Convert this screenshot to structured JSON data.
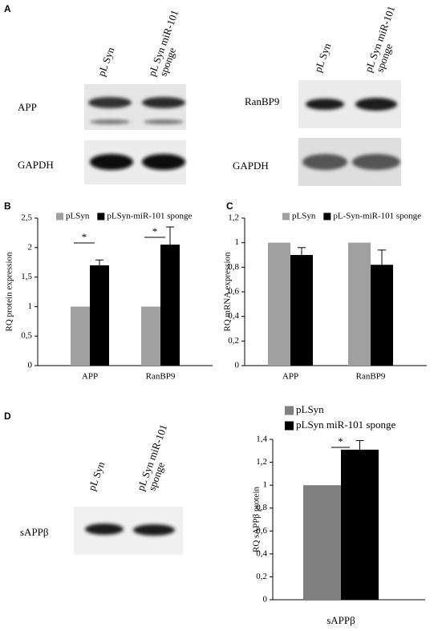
{
  "panel_labels": [
    "A",
    "B",
    "C",
    "D"
  ],
  "blots": [
    {
      "lanes": [
        [
          "pL Syn"
        ],
        [
          "pL Syn miR-101",
          "sponge"
        ]
      ],
      "rows": [
        "APP",
        "GAPDH"
      ]
    },
    {
      "lanes": [
        [
          "pL Syn"
        ],
        [
          "pL Syn miR-101",
          "sponge"
        ]
      ],
      "rows": [
        "RanBP9",
        "GAPDH"
      ]
    },
    {
      "lanes": [
        [
          "pL Syn"
        ],
        [
          "pL Syn miR-101",
          "sponge"
        ]
      ],
      "rows": [
        "sAPPβ"
      ]
    }
  ],
  "chart_data": [
    {
      "type": "bar",
      "ylabel": "RQ protein expression",
      "categories": [
        "APP",
        "RanBP9"
      ],
      "series": [
        {
          "name": "pLSyn",
          "color": "#a0a0a0",
          "values": [
            1,
            1
          ]
        },
        {
          "name": "pLSyn-miR-101 sponge",
          "color": "#000000",
          "values": [
            1.7,
            2.05
          ],
          "errors": [
            0.09,
            0.3
          ]
        }
      ],
      "ylim": [
        0,
        2.5
      ],
      "yticks": [
        0,
        {
          "value": 0.5,
          "label": "0,5"
        },
        1,
        {
          "value": 1.5,
          "label": "1,5"
        },
        2,
        {
          "value": 2.5,
          "label": "2,5"
        }
      ],
      "annotations": [
        "*",
        "*"
      ],
      "legend": "top"
    },
    {
      "type": "bar",
      "ylabel": "RQ mRNA expression",
      "categories": [
        "APP",
        "RanBP9"
      ],
      "series": [
        {
          "name": "pLSyn",
          "color": "#a0a0a0",
          "values": [
            1,
            1
          ]
        },
        {
          "name": "pL-Syn-miR-101 sponge",
          "color": "#000000",
          "values": [
            0.9,
            0.82
          ],
          "errors": [
            0.06,
            0.12
          ]
        }
      ],
      "ylim": [
        0,
        1.2
      ],
      "yticks": [
        0,
        {
          "value": 0.2,
          "label": "0,2"
        },
        {
          "value": 0.4,
          "label": "0,4"
        },
        {
          "value": 0.6,
          "label": "0,6"
        },
        {
          "value": 0.8,
          "label": "0,8"
        },
        1,
        {
          "value": 1.2,
          "label": "1,2"
        }
      ],
      "legend": "top"
    },
    {
      "type": "bar",
      "ylabel": "RQ sAPPβ protein",
      "categories": [
        "sAPPβ"
      ],
      "series": [
        {
          "name": "pLSyn",
          "color": "#808080",
          "values": [
            1
          ]
        },
        {
          "name": "pLSyn miR-101 sponge",
          "color": "#000000",
          "values": [
            1.31
          ],
          "errors": [
            0.08
          ]
        }
      ],
      "ylim": [
        0,
        1.4
      ],
      "yticks": [
        0,
        {
          "value": 0.2,
          "label": "0,2"
        },
        {
          "value": 0.4,
          "label": "0,4"
        },
        {
          "value": 0.6,
          "label": "0,6"
        },
        {
          "value": 0.8,
          "label": "0,8"
        },
        1,
        {
          "value": 1.2,
          "label": "1,2"
        },
        {
          "value": 1.4,
          "label": "1,4"
        }
      ],
      "annotations": [
        "*"
      ],
      "legend": "top-left"
    }
  ]
}
